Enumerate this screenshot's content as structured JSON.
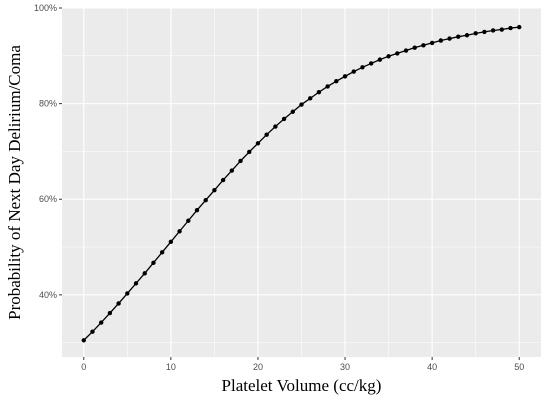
{
  "chart_data": {
    "type": "line",
    "title": "",
    "xlabel": "Platelet Volume (cc/kg)",
    "ylabel": "Probability of Next Day Delirium/Coma",
    "xlim": [
      -2.5,
      52.5
    ],
    "ylim": [
      0.27,
      1.0
    ],
    "x_ticks": [
      0,
      10,
      20,
      30,
      40,
      50
    ],
    "x_tick_labels": [
      "0",
      "10",
      "20",
      "30",
      "40",
      "50"
    ],
    "y_ticks": [
      0.4,
      0.6,
      0.8,
      1.0
    ],
    "y_tick_labels": [
      "40%",
      "60%",
      "80%",
      "100%"
    ],
    "grid": true,
    "legend": "none",
    "colors": {
      "panel": "#ebebeb",
      "grid": "#ffffff",
      "line": "#000000"
    },
    "series": [
      {
        "x": [
          0,
          1,
          2,
          3,
          4,
          5,
          6,
          7,
          8,
          9,
          10,
          11,
          12,
          13,
          14,
          15,
          16,
          17,
          18,
          19,
          20,
          21,
          22,
          23,
          24,
          25,
          26,
          27,
          28,
          29,
          30,
          31,
          32,
          33,
          34,
          35,
          36,
          37,
          38,
          39,
          40,
          41,
          42,
          43,
          44,
          45,
          46,
          47,
          48,
          49,
          50
        ],
        "values": [
          0.305,
          0.323,
          0.342,
          0.362,
          0.382,
          0.403,
          0.424,
          0.445,
          0.467,
          0.489,
          0.511,
          0.533,
          0.555,
          0.577,
          0.598,
          0.619,
          0.64,
          0.66,
          0.68,
          0.699,
          0.717,
          0.735,
          0.752,
          0.768,
          0.783,
          0.798,
          0.811,
          0.824,
          0.836,
          0.847,
          0.857,
          0.867,
          0.876,
          0.884,
          0.892,
          0.899,
          0.905,
          0.911,
          0.917,
          0.922,
          0.927,
          0.932,
          0.936,
          0.94,
          0.943,
          0.947,
          0.95,
          0.953,
          0.955,
          0.958,
          0.96
        ]
      }
    ]
  }
}
